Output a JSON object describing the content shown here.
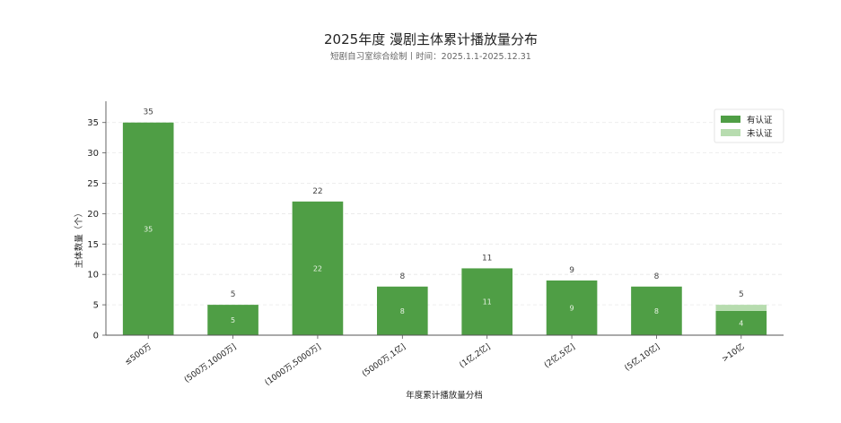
{
  "chart_data": {
    "type": "bar",
    "title": "2025年度 漫剧主体累计播放量分布",
    "subtitle": "短剧自习室综合绘制丨时间：2025.1.1-2025.12.31",
    "xlabel": "年度累计播放量分档",
    "ylabel": "主体数量（个）",
    "categories": [
      "≤500万",
      "(500万,1000万]",
      "(1000万,5000万]",
      "(5000万,1亿]",
      "(1亿,2亿]",
      "(2亿,5亿]",
      "(5亿,10亿]",
      ">10亿"
    ],
    "series": [
      {
        "name": "有认证",
        "values": [
          35,
          5,
          22,
          8,
          11,
          9,
          8,
          4
        ],
        "color": "#4f9e45"
      },
      {
        "name": "未认证",
        "values": [
          0,
          0,
          0,
          0,
          0,
          0,
          0,
          1
        ],
        "color": "#b7dcaf"
      }
    ],
    "totals": [
      35,
      5,
      22,
      8,
      11,
      9,
      8,
      5
    ],
    "yticks": [
      0,
      5,
      10,
      15,
      20,
      25,
      30,
      35
    ],
    "ylim": [
      0,
      38.5
    ],
    "grid": true,
    "stacked": true,
    "legend_position": "top-right"
  }
}
